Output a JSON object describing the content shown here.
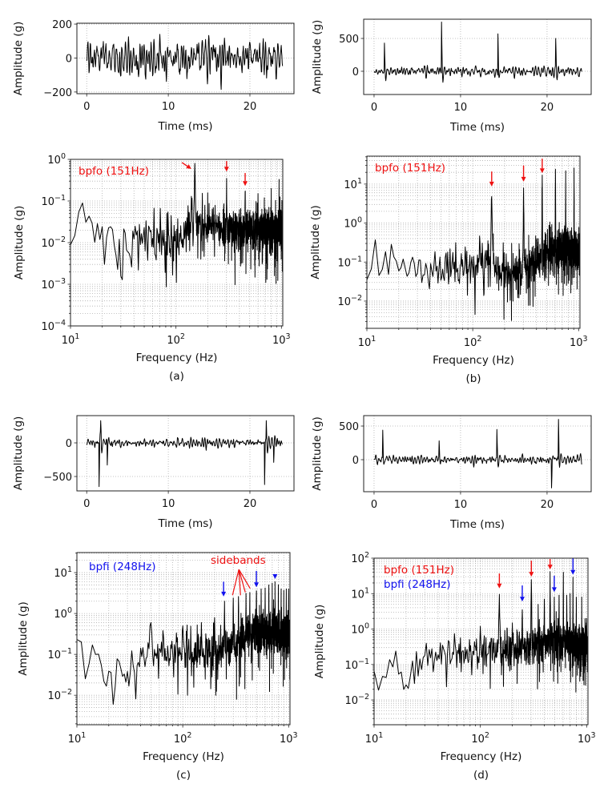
{
  "colors": {
    "line": "#000000",
    "bpfo": "#ee1111",
    "bpfi": "#1111ee",
    "grid": "#b0b0b0"
  },
  "chart_data": [
    {
      "id": "a-time",
      "type": "line",
      "xlabel": "Time (ms)",
      "ylabel": "Amplitude (g)",
      "xscale": "linear",
      "yscale": "linear",
      "xlim": [
        -1.2,
        25.4
      ],
      "ylim": [
        -210,
        205
      ],
      "xticks": [
        0,
        10,
        20
      ],
      "yticks": [
        -200,
        0,
        200
      ],
      "grid": true,
      "duration_ms": 24,
      "noise_amplitude": 185,
      "bursts": []
    },
    {
      "id": "b-time",
      "type": "line",
      "xlabel": "Time (ms)",
      "ylabel": "Amplitude (g)",
      "xscale": "linear",
      "yscale": "linear",
      "xlim": [
        -1.2,
        25.1
      ],
      "ylim": [
        -354,
        793
      ],
      "xticks": [
        0,
        10,
        20
      ],
      "yticks": [
        0,
        500
      ],
      "grid": true,
      "duration_ms": 24,
      "noise_amplitude": 110,
      "bursts": [
        {
          "t": 1.2,
          "a": 430
        },
        {
          "t": 7.8,
          "a": 750
        },
        {
          "t": 14.3,
          "a": 570
        },
        {
          "t": 21.0,
          "a": 500
        }
      ]
    },
    {
      "id": "a-freq",
      "type": "line",
      "caption": "(a)",
      "xlabel": "Frequency (Hz)",
      "ylabel": "Amplitude (g)",
      "xscale": "log",
      "yscale": "log",
      "xlim": [
        10,
        1030
      ],
      "ylim": [
        0.0001,
        1
      ],
      "xticks": [
        10,
        100,
        1000
      ],
      "yticks": [
        0.0001,
        0.001,
        0.01,
        0.1,
        1
      ],
      "grid": true,
      "baseline": [
        [
          10,
          0.02
        ],
        [
          15,
          0.035
        ],
        [
          20,
          0.012
        ],
        [
          60,
          0.012
        ],
        [
          100,
          0.01
        ],
        [
          130,
          0.02
        ],
        [
          160,
          0.03
        ],
        [
          300,
          0.02
        ],
        [
          1000,
          0.02
        ]
      ],
      "peaks": [
        [
          140,
          0.13
        ],
        [
          151,
          0.8
        ],
        [
          302,
          0.35
        ],
        [
          453,
          0.17
        ],
        [
          600,
          0.15
        ],
        [
          800,
          0.2
        ],
        [
          950,
          0.33
        ]
      ],
      "annotations": [
        {
          "text": "bpfo (151Hz)",
          "color": "#ee1111"
        }
      ],
      "arrows": [
        {
          "from": [
            114,
            0.84
          ],
          "to": [
            140,
            0.59
          ],
          "color": "#ee1111"
        },
        {
          "from": [
            302,
            0.91
          ],
          "to": [
            302,
            0.51
          ],
          "color": "#ee1111"
        },
        {
          "from": [
            453,
            0.47
          ],
          "to": [
            453,
            0.23
          ],
          "color": "#ee1111"
        }
      ]
    },
    {
      "id": "b-freq",
      "type": "line",
      "caption": "(b)",
      "xlabel": "Frequency (Hz)",
      "ylabel": "Amplitude (g)",
      "xscale": "log",
      "yscale": "log",
      "xlim": [
        10,
        1030
      ],
      "ylim": [
        0.002,
        52
      ],
      "xticks": [
        10,
        100,
        1000
      ],
      "yticks": [
        0.01,
        0.1,
        1,
        10
      ],
      "grid": true,
      "baseline": [
        [
          10,
          0.04
        ],
        [
          13,
          0.2
        ],
        [
          20,
          0.08
        ],
        [
          40,
          0.05
        ],
        [
          100,
          0.08
        ],
        [
          140,
          0.15
        ],
        [
          200,
          0.05
        ],
        [
          400,
          0.1
        ],
        [
          500,
          0.2
        ],
        [
          1000,
          0.2
        ]
      ],
      "peaks": [
        [
          151,
          4.8
        ],
        [
          302,
          8
        ],
        [
          453,
          17
        ],
        [
          604,
          24
        ],
        [
          755,
          22
        ],
        [
          906,
          26
        ]
      ],
      "annotations": [
        {
          "text": "bpfo (151Hz)",
          "color": "#ee1111"
        }
      ],
      "arrows": [
        {
          "from": [
            151,
            21
          ],
          "to": [
            151,
            8.7
          ],
          "color": "#ee1111"
        },
        {
          "from": [
            302,
            30
          ],
          "to": [
            302,
            11.5
          ],
          "color": "#ee1111"
        },
        {
          "from": [
            453,
            45
          ],
          "to": [
            453,
            19
          ],
          "color": "#ee1111"
        }
      ]
    },
    {
      "id": "c-time",
      "type": "line",
      "xlabel": "Time (ms)",
      "ylabel": "Amplitude (g)",
      "xscale": "linear",
      "yscale": "linear",
      "xlim": [
        -1.2,
        25.4
      ],
      "ylim": [
        -714,
        405
      ],
      "xticks": [
        0,
        10,
        20
      ],
      "yticks": [
        -500,
        0
      ],
      "grid": true,
      "duration_ms": 24,
      "noise_amplitude": 110,
      "bursts": [
        {
          "t": 1.5,
          "a": -650
        },
        {
          "t": 1.7,
          "a": 330
        },
        {
          "t": 2.5,
          "a": -330
        },
        {
          "t": 21.8,
          "a": -620
        },
        {
          "t": 22.0,
          "a": 330
        },
        {
          "t": 22.9,
          "a": -290
        }
      ]
    },
    {
      "id": "d-time",
      "type": "line",
      "xlabel": "Time (ms)",
      "ylabel": "Amplitude (g)",
      "xscale": "linear",
      "yscale": "linear",
      "xlim": [
        -1.2,
        25.1
      ],
      "ylim": [
        -476,
        655
      ],
      "xticks": [
        0,
        10,
        20
      ],
      "yticks": [
        0,
        500
      ],
      "grid": true,
      "duration_ms": 24,
      "noise_amplitude": 110,
      "bursts": [
        {
          "t": 1.0,
          "a": 440
        },
        {
          "t": 7.5,
          "a": 280
        },
        {
          "t": 14.2,
          "a": 450
        },
        {
          "t": 20.5,
          "a": -420
        },
        {
          "t": 21.3,
          "a": 600
        }
      ]
    },
    {
      "id": "c-freq",
      "type": "line",
      "caption": "(c)",
      "xlabel": "Frequency (Hz)",
      "ylabel": "Amplitude (g)",
      "xscale": "log",
      "yscale": "log",
      "xlim": [
        10,
        1030
      ],
      "ylim": [
        0.0019,
        31
      ],
      "xticks": [
        10,
        100,
        1000
      ],
      "yticks": [
        0.01,
        0.1,
        1,
        10
      ],
      "grid": true,
      "baseline": [
        [
          10,
          0.1
        ],
        [
          15,
          0.12
        ],
        [
          20,
          0.03
        ],
        [
          30,
          0.03
        ],
        [
          40,
          0.1
        ],
        [
          100,
          0.1
        ],
        [
          300,
          0.15
        ],
        [
          500,
          0.4
        ],
        [
          1000,
          0.3
        ]
      ],
      "peaks": [
        [
          50,
          0.6
        ],
        [
          100,
          0.5
        ],
        [
          150,
          0.6
        ],
        [
          200,
          0.8
        ],
        [
          248,
          2
        ],
        [
          300,
          2.4
        ],
        [
          336,
          2.6
        ],
        [
          396,
          3.1
        ],
        [
          430,
          3.3
        ],
        [
          496,
          3.6
        ],
        [
          550,
          4
        ],
        [
          600,
          4.2
        ],
        [
          650,
          5
        ],
        [
          700,
          5.5
        ],
        [
          744,
          6
        ],
        [
          800,
          5
        ],
        [
          850,
          4
        ],
        [
          900,
          3.7
        ],
        [
          950,
          4
        ],
        [
          1000,
          4
        ]
      ],
      "annotations": [
        {
          "text": "bpfi (248Hz)",
          "color": "#1111ee"
        },
        {
          "text": "sidebands",
          "color": "#ee1111"
        }
      ],
      "arrows": [
        {
          "from": [
            243,
            6
          ],
          "to": [
            243,
            2.6
          ],
          "color": "#1111ee"
        },
        {
          "from": [
            496,
            11
          ],
          "to": [
            496,
            4.4
          ],
          "color": "#1111ee"
        },
        {
          "from": [
            744,
            9
          ],
          "to": [
            744,
            7
          ],
          "color": "#1111ee"
        }
      ],
      "sideband_lines": {
        "from": [
          339,
          12
        ],
        "to": [
          [
            295,
            2.8
          ],
          [
            351,
            2.8
          ],
          [
            390,
            3.3
          ],
          [
            433,
            4.1
          ]
        ],
        "color": "#ee1111"
      }
    },
    {
      "id": "d-freq",
      "type": "line",
      "caption": "(d)",
      "xlabel": "Frequency (Hz)",
      "ylabel": "Amplitude (g)",
      "xscale": "log",
      "yscale": "log",
      "xlim": [
        10,
        1030
      ],
      "ylim": [
        0.002,
        100
      ],
      "xticks": [
        10,
        100,
        1000
      ],
      "yticks": [
        0.01,
        0.1,
        1,
        10,
        100
      ],
      "grid": true,
      "baseline": [
        [
          10,
          0.05
        ],
        [
          11,
          0.02
        ],
        [
          15,
          0.15
        ],
        [
          20,
          0.05
        ],
        [
          40,
          0.2
        ],
        [
          100,
          0.2
        ],
        [
          300,
          0.3
        ],
        [
          500,
          0.5
        ],
        [
          1000,
          0.3
        ]
      ],
      "peaks": [
        [
          100,
          1.2
        ],
        [
          151,
          9.5
        ],
        [
          200,
          1.5
        ],
        [
          248,
          3.5
        ],
        [
          302,
          25
        ],
        [
          350,
          5
        ],
        [
          400,
          7
        ],
        [
          453,
          42
        ],
        [
          496,
          8
        ],
        [
          550,
          9
        ],
        [
          604,
          40
        ],
        [
          650,
          9
        ],
        [
          700,
          10
        ],
        [
          744,
          29
        ],
        [
          800,
          8
        ],
        [
          900,
          8
        ],
        [
          1000,
          2
        ]
      ],
      "annotations": [
        {
          "text": "bpfo (151Hz)",
          "color": "#ee1111"
        },
        {
          "text": "bpfi (248Hz)",
          "color": "#1111ee"
        }
      ],
      "arrows": [
        {
          "from": [
            151,
            37
          ],
          "to": [
            151,
            14
          ],
          "color": "#ee1111"
        },
        {
          "from": [
            302,
            85
          ],
          "to": [
            302,
            30
          ],
          "color": "#ee1111"
        },
        {
          "from": [
            453,
            95
          ],
          "to": [
            453,
            48
          ],
          "color": "#ee1111"
        },
        {
          "from": [
            248,
            17
          ],
          "to": [
            248,
            6
          ],
          "color": "#1111ee"
        },
        {
          "from": [
            496,
            32
          ],
          "to": [
            496,
            11
          ],
          "color": "#1111ee"
        },
        {
          "from": [
            744,
            98
          ],
          "to": [
            744,
            34
          ],
          "color": "#1111ee"
        }
      ]
    }
  ]
}
